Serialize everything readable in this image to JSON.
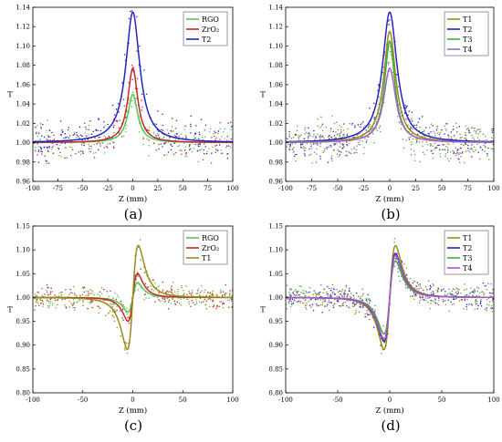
{
  "figure": {
    "panels": [
      {
        "label": "(a)",
        "chart_data": {
          "type": "line",
          "xlabel": "Z (mm)",
          "ylabel": "T",
          "xlim": [
            -100,
            100
          ],
          "ylim": [
            0.96,
            1.14
          ],
          "xticks": [
            -100,
            -75,
            -50,
            -25,
            0,
            25,
            50,
            75,
            100
          ],
          "yticks": [
            0.96,
            0.98,
            1.0,
            1.02,
            1.04,
            1.06,
            1.08,
            1.1,
            1.12,
            1.14
          ],
          "yprecision": 2,
          "legend_position": "top-right",
          "series": [
            {
              "name": "RGO",
              "color": "#55c455",
              "shape": "peak",
              "amp": 0.05,
              "width": 6,
              "noise": 0.01,
              "seed": 11
            },
            {
              "name": "ZrO₂",
              "color": "#c62a2a",
              "shape": "peak",
              "amp": 0.077,
              "width": 6,
              "noise": 0.012,
              "seed": 23
            },
            {
              "name": "T2",
              "color": "#2424c4",
              "shape": "peak",
              "amp": 0.135,
              "width": 8.5,
              "noise": 0.012,
              "seed": 37
            }
          ]
        }
      },
      {
        "label": "(b)",
        "chart_data": {
          "type": "line",
          "xlabel": "Z (mm)",
          "ylabel": "T",
          "xlim": [
            -100,
            100
          ],
          "ylim": [
            0.96,
            1.14
          ],
          "xticks": [
            -100,
            -75,
            -50,
            -25,
            0,
            25,
            50,
            75,
            100
          ],
          "yticks": [
            0.96,
            0.98,
            1.0,
            1.02,
            1.04,
            1.06,
            1.08,
            1.1,
            1.12,
            1.14
          ],
          "yprecision": 2,
          "legend_position": "top-right",
          "series": [
            {
              "name": "T1",
              "color": "#9a8a18",
              "shape": "peak",
              "amp": 0.115,
              "width": 7,
              "noise": 0.012,
              "seed": 41
            },
            {
              "name": "T2",
              "color": "#2424c4",
              "shape": "peak",
              "amp": 0.135,
              "width": 8.5,
              "noise": 0.012,
              "seed": 53
            },
            {
              "name": "T3",
              "color": "#3fae3f",
              "shape": "peak",
              "amp": 0.105,
              "width": 6,
              "noise": 0.012,
              "seed": 67
            },
            {
              "name": "T4",
              "color": "#a865c9",
              "shape": "peak",
              "amp": 0.077,
              "width": 7,
              "noise": 0.012,
              "seed": 79
            }
          ]
        }
      },
      {
        "label": "(c)",
        "chart_data": {
          "type": "line",
          "xlabel": "Z (mm)",
          "ylabel": "T",
          "xlim": [
            -100,
            100
          ],
          "ylim": [
            0.8,
            1.15
          ],
          "xticks": [
            -100,
            -50,
            0,
            50,
            100
          ],
          "yticks": [
            0.8,
            0.85,
            0.9,
            0.95,
            1.0,
            1.05,
            1.1,
            1.15
          ],
          "yprecision": 2,
          "legend_position": "top-right",
          "series": [
            {
              "name": "RGO",
              "color": "#55c455",
              "shape": "peak-valley",
              "amp": 0.04,
              "width": 7,
              "noise": 0.012,
              "seed": 83
            },
            {
              "name": "ZrO₂",
              "color": "#c62a2a",
              "shape": "peak-valley",
              "amp": 0.065,
              "width": 7,
              "noise": 0.015,
              "seed": 97
            },
            {
              "name": "T1",
              "color": "#9a8a18",
              "shape": "peak-valley",
              "amp": 0.142,
              "width": 8,
              "noise": 0.015,
              "seed": 101
            }
          ]
        }
      },
      {
        "label": "(d)",
        "chart_data": {
          "type": "line",
          "xlabel": "Z (mm)",
          "ylabel": "T",
          "xlim": [
            -100,
            100
          ],
          "ylim": [
            0.8,
            1.15
          ],
          "xticks": [
            -100,
            -50,
            0,
            50,
            100
          ],
          "yticks": [
            0.8,
            0.85,
            0.9,
            0.95,
            1.0,
            1.05,
            1.1,
            1.15
          ],
          "yprecision": 2,
          "legend_position": "top-right",
          "series": [
            {
              "name": "T1",
              "color": "#9a8a18",
              "shape": "peak-valley",
              "amp": 0.142,
              "width": 8,
              "noise": 0.015,
              "seed": 113
            },
            {
              "name": "T2",
              "color": "#2424c4",
              "shape": "peak-valley",
              "amp": 0.12,
              "width": 8,
              "noise": 0.015,
              "seed": 127
            },
            {
              "name": "T3",
              "color": "#3fae3f",
              "shape": "peak-valley",
              "amp": 0.1,
              "width": 8,
              "noise": 0.015,
              "seed": 131
            },
            {
              "name": "T4",
              "color": "#b050d0",
              "shape": "peak-valley",
              "amp": 0.115,
              "width": 8,
              "noise": 0.015,
              "seed": 139
            }
          ]
        }
      }
    ]
  }
}
